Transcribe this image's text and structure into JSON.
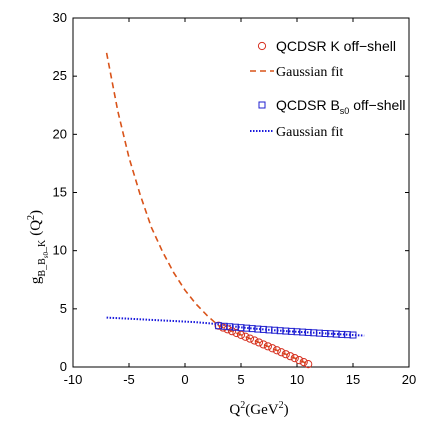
{
  "chart_data": {
    "type": "scatter",
    "title": "",
    "xlabel": {
      "base": "Q",
      "sup": "2",
      "unit_open": "(GeV",
      "unit_sup": "2",
      "unit_close": ")"
    },
    "ylabel": {
      "g": "g",
      "sub1": "B",
      "sub2": "_B",
      "sub3": "s0",
      "sub4": "_K",
      "q_open": "(Q",
      "q_sup": "2",
      "q_close": ")"
    },
    "xlim": [
      -10,
      20
    ],
    "ylim": [
      0,
      30
    ],
    "xticks": [
      "-10",
      "-5",
      "0",
      "5",
      "10",
      "15",
      "20"
    ],
    "yticks": [
      "0",
      "5",
      "10",
      "15",
      "20",
      "25",
      "30"
    ],
    "grid": false,
    "legend_position": "top-right",
    "legend": [
      {
        "text": "QCDSR K off−shell",
        "font": "sans"
      },
      {
        "text": "Gaussian fit",
        "font": "serif"
      },
      {
        "text": "QCDSR B",
        "sub": "s0",
        "tail": " off−shell",
        "font": "sans"
      },
      {
        "text": "Gaussian fit",
        "font": "serif"
      }
    ],
    "series": [
      {
        "name": "QCDSR K off−shell",
        "style": "open-circle",
        "color": "#d62f1f",
        "x": [
          3.0,
          3.4,
          3.8,
          4.2,
          4.6,
          5.0,
          5.4,
          5.8,
          6.2,
          6.6,
          7.0,
          7.4,
          7.8,
          8.2,
          8.6,
          9.0,
          9.4,
          9.8,
          10.2,
          10.6,
          11.0
        ],
        "y": [
          3.55,
          3.39,
          3.24,
          3.08,
          2.92,
          2.76,
          2.6,
          2.44,
          2.28,
          2.11,
          1.94,
          1.78,
          1.61,
          1.44,
          1.27,
          1.1,
          0.93,
          0.76,
          0.59,
          0.42,
          0.25
        ]
      },
      {
        "name": "Gaussian fit",
        "style": "dashed",
        "color": "#d95319",
        "x": [
          -7.0,
          -6.0,
          -5.0,
          -4.0,
          -3.0,
          -2.0,
          -1.0,
          0.0,
          1.0,
          2.0,
          3.0,
          4.0,
          5.0,
          6.0,
          7.0,
          8.0,
          9.0,
          10.0,
          11.0
        ],
        "y": [
          27.0,
          22.0,
          18.0,
          14.8,
          12.0,
          9.9,
          8.1,
          6.6,
          5.4,
          4.4,
          3.55,
          3.15,
          2.76,
          2.36,
          1.94,
          1.52,
          1.1,
          0.68,
          0.25
        ]
      },
      {
        "name": "QCDSR Bs0 off−shell",
        "style": "open-square",
        "color": "#1f1fcf",
        "x": [
          3.0,
          3.5,
          4.0,
          4.5,
          5.0,
          5.5,
          6.0,
          6.5,
          7.0,
          7.5,
          8.0,
          8.5,
          9.0,
          9.5,
          10.0,
          10.5,
          11.0,
          11.5,
          12.0,
          12.5,
          13.0,
          13.5,
          14.0,
          14.5,
          15.0
        ],
        "y": [
          3.55,
          3.5,
          3.46,
          3.42,
          3.38,
          3.34,
          3.3,
          3.26,
          3.23,
          3.19,
          3.16,
          3.12,
          3.09,
          3.06,
          3.03,
          3.0,
          2.97,
          2.94,
          2.91,
          2.88,
          2.86,
          2.83,
          2.8,
          2.78,
          2.75
        ]
      },
      {
        "name": "Gaussian fit",
        "style": "dotted",
        "color": "#1a1adc",
        "x": [
          -7.0,
          -5.0,
          -3.0,
          -1.0,
          1.0,
          3.0,
          5.0,
          7.0,
          9.0,
          11.0,
          13.0,
          15.0,
          16.0
        ],
        "y": [
          4.25,
          4.15,
          4.05,
          3.95,
          3.85,
          3.68,
          3.4,
          3.23,
          3.09,
          2.97,
          2.86,
          2.75,
          2.7
        ]
      }
    ]
  }
}
